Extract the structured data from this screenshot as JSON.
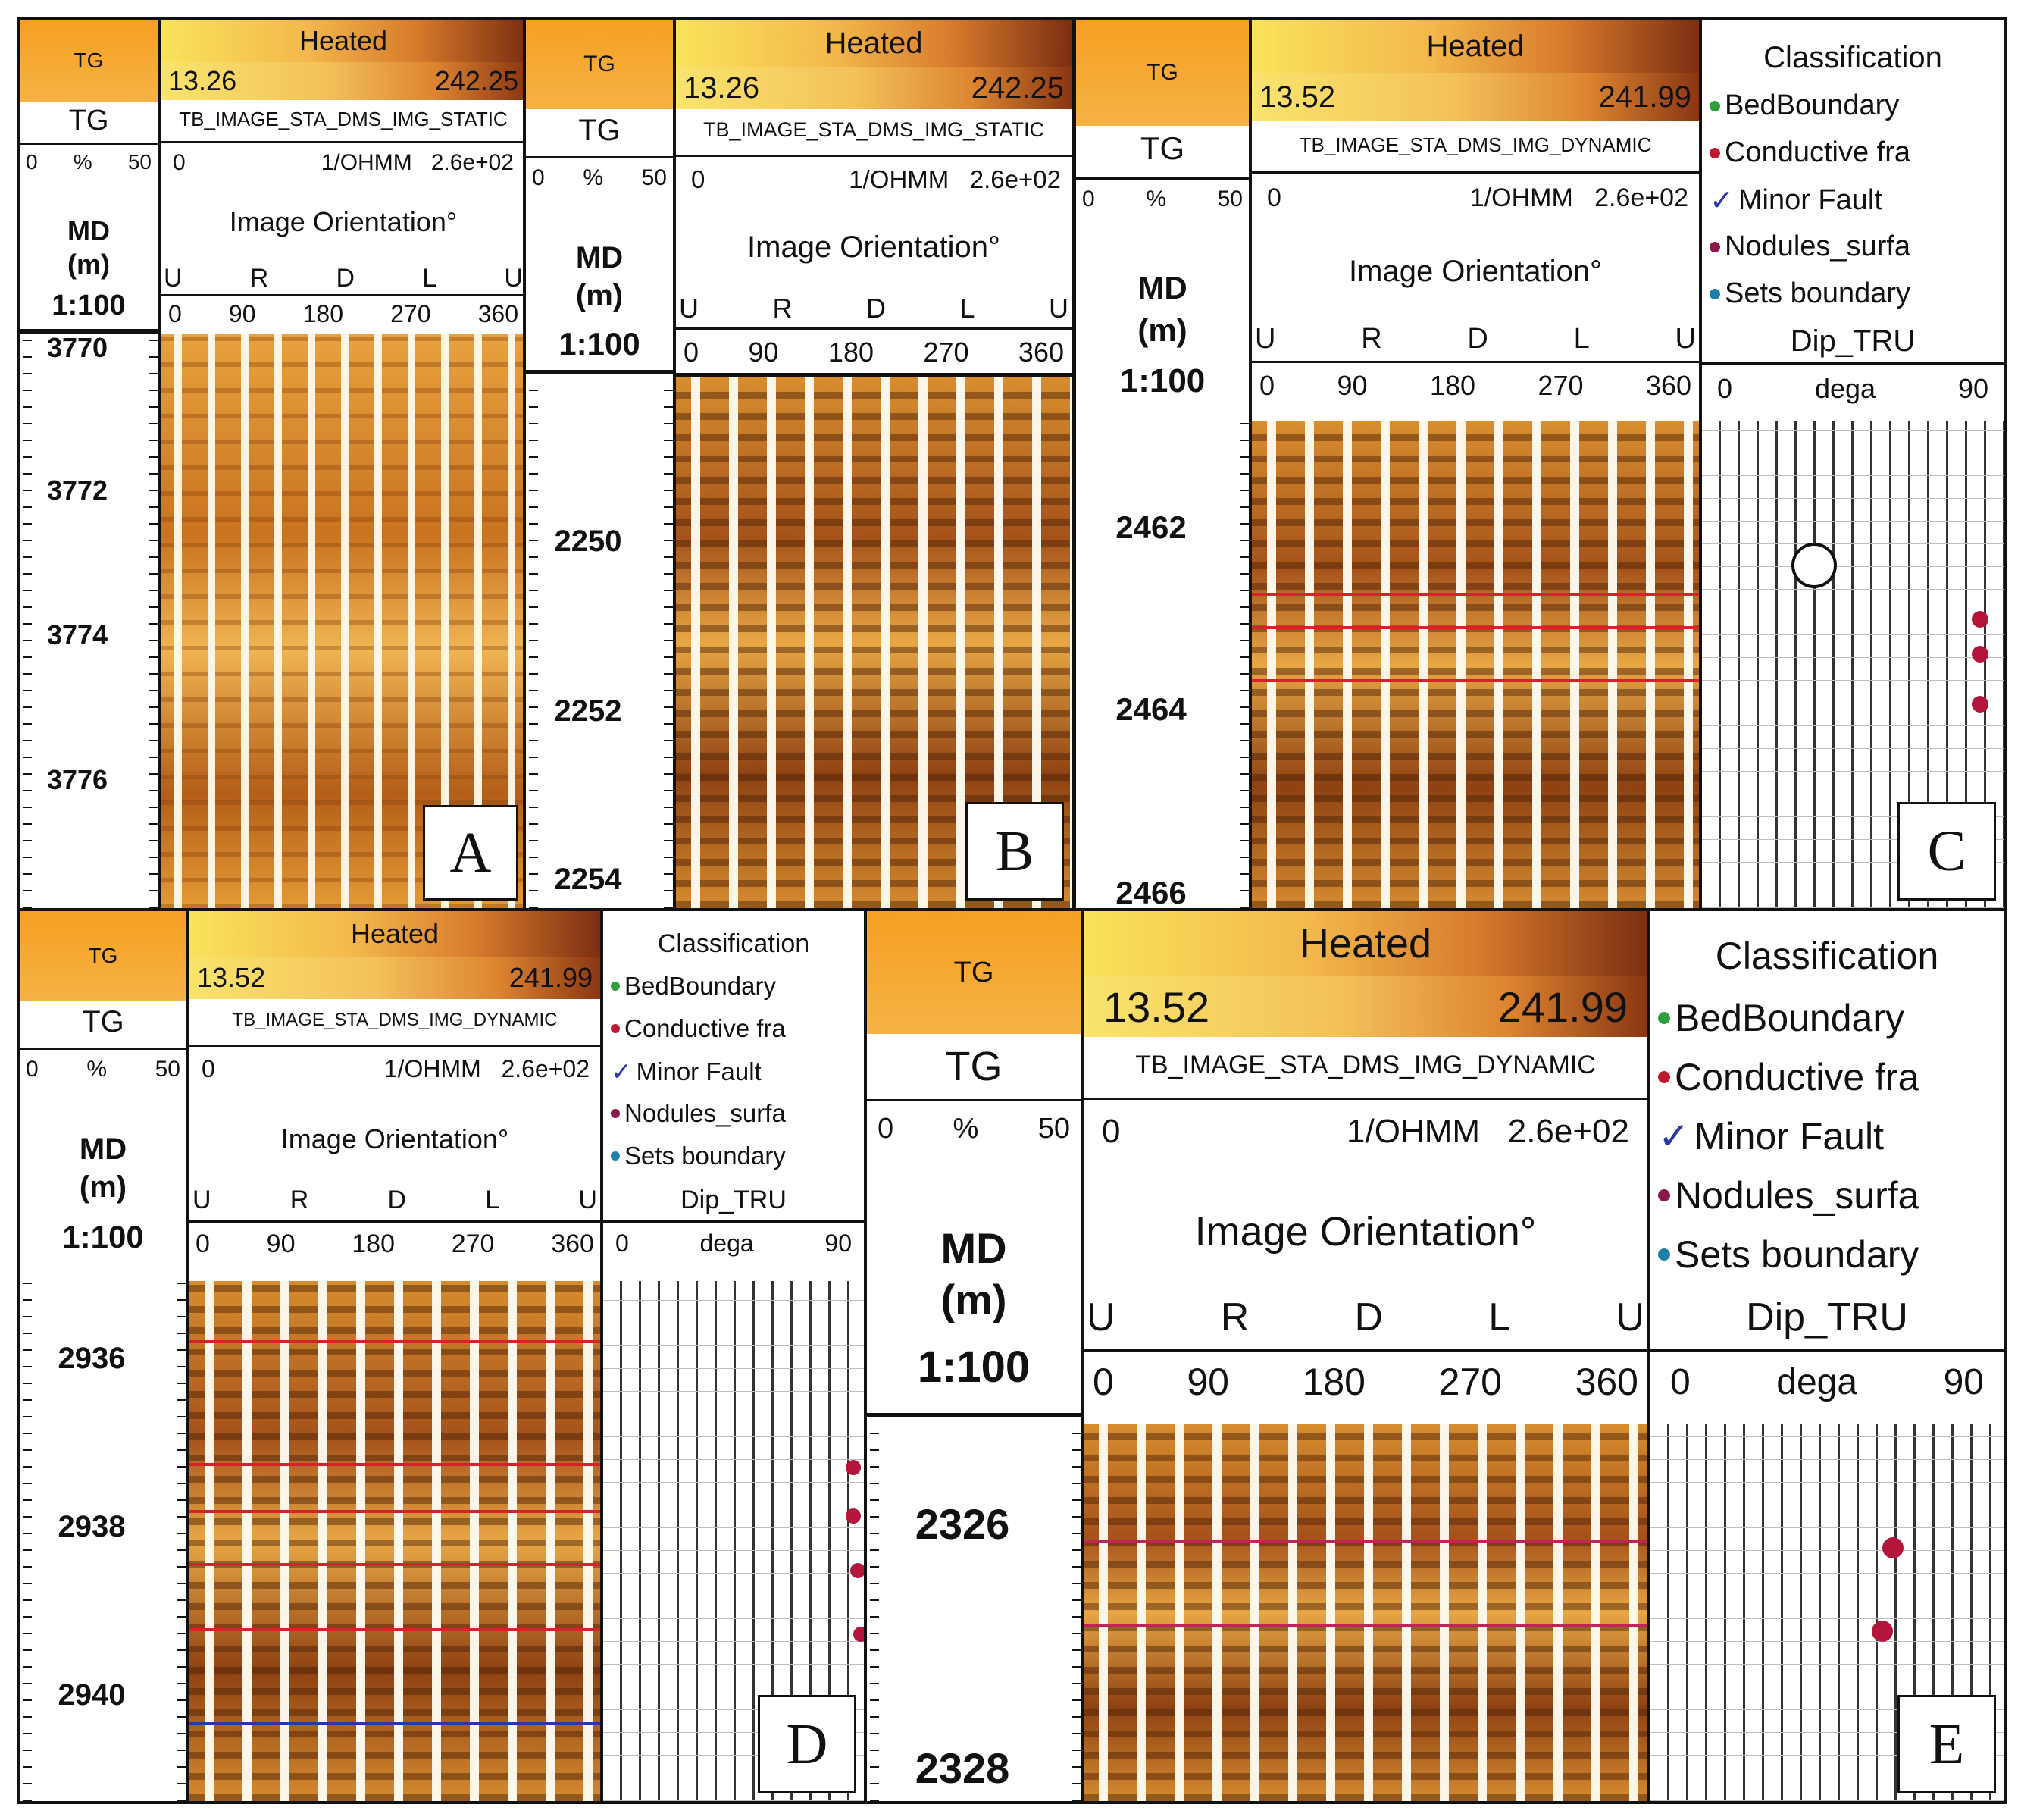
{
  "common": {
    "tg_label": "TG",
    "heated_label": "Heated",
    "image_orientation_label": "Image Orientation°",
    "md_label": "MD",
    "md_unit": "(m)",
    "md_scale": "1:100",
    "gr_min": "0",
    "gr_unit": "%",
    "gr_max": "50",
    "res_min": "0",
    "res_unit": "1/OHMM",
    "res_max": "2.6e+02",
    "orientation_letters": [
      "U",
      "R",
      "D",
      "L",
      "U"
    ],
    "orientation_degrees": [
      "0",
      "90",
      "180",
      "270",
      "360"
    ],
    "classification_label": "Classification",
    "legend": [
      {
        "label": "BedBoundary",
        "color": "#2e9e3e"
      },
      {
        "label": "Conductive fra",
        "color": "#c0182f"
      },
      {
        "label": "Minor Fault",
        "color": "#2b36a8"
      },
      {
        "label": "Nodules_surfa",
        "color": "#8a1a4c"
      },
      {
        "label": "Sets boundary",
        "color": "#1f7fa8"
      }
    ],
    "dip_label": "Dip_TRU",
    "dip_min": "0",
    "dip_unit": "dega",
    "dip_max": "90"
  },
  "panels": {
    "A": {
      "letter": "A",
      "scale_min": "13.26",
      "scale_max": "242.25",
      "image_name": "TB_IMAGE_STA_DMS_IMG_STATIC",
      "depths": [
        "3770",
        "3772",
        "3774",
        "3776"
      ]
    },
    "B": {
      "letter": "B",
      "scale_min": "13.26",
      "scale_max": "242.25",
      "image_name": "TB_IMAGE_STA_DMS_IMG_STATIC",
      "depths": [
        "2250",
        "2252",
        "2254"
      ]
    },
    "C": {
      "letter": "C",
      "scale_min": "13.52",
      "scale_max": "241.99",
      "image_name": "TB_IMAGE_STA_DMS_IMG_DYNAMIC",
      "depths": [
        "2462",
        "2464",
        "2466"
      ]
    },
    "D": {
      "letter": "D",
      "scale_min": "13.52",
      "scale_max": "241.99",
      "image_name": "TB_IMAGE_STA_DMS_IMG_DYNAMIC",
      "depths": [
        "2936",
        "2938",
        "2940"
      ]
    },
    "E": {
      "letter": "E",
      "scale_min": "13.52",
      "scale_max": "241.99",
      "image_name": "TB_IMAGE_STA_DMS_IMG_DYNAMIC",
      "depths": [
        "2326",
        "2328"
      ]
    }
  }
}
